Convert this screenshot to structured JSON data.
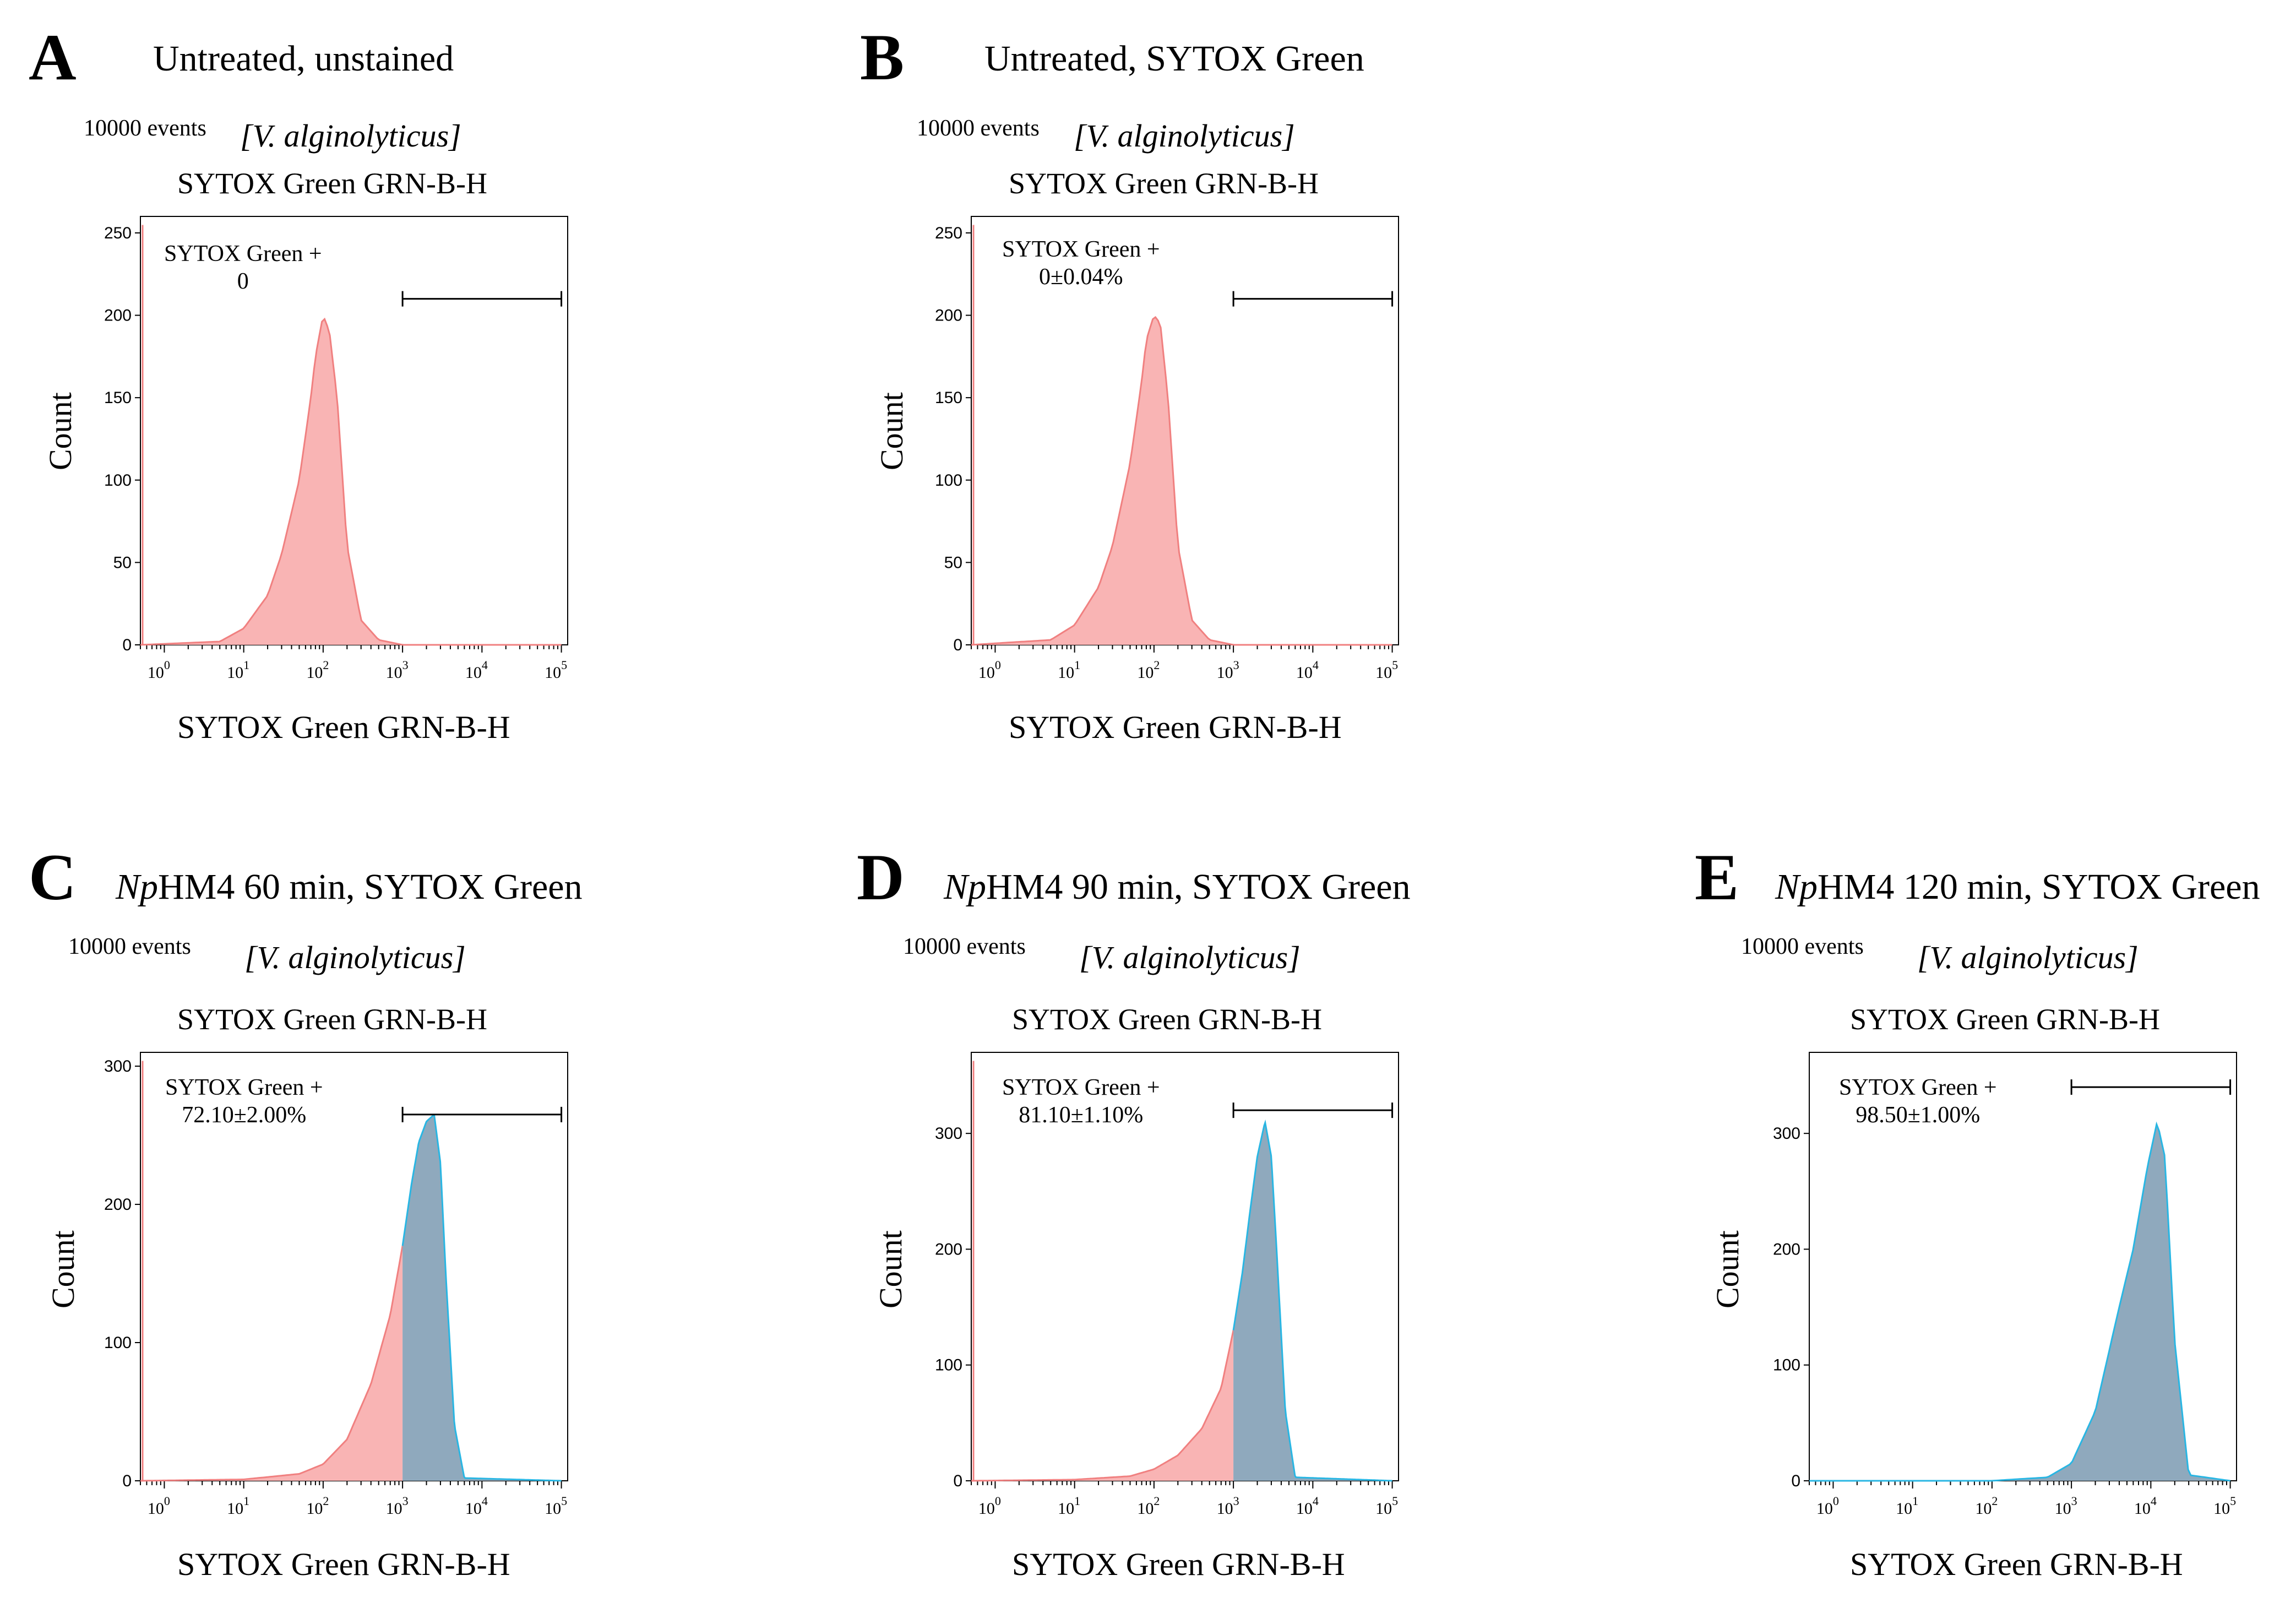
{
  "panels": [
    {
      "id": "A",
      "letter": "A",
      "title": "Untreated, unstained",
      "events": "10000 events",
      "species": "[V. alginolyticus]",
      "axis_title": "SYTOX Green  GRN-B-H",
      "xlabel": "SYTOX Green  GRN-B-H",
      "ylabel": "Count",
      "gate_name": "SYTOX Green +",
      "gate_value": "0"
    },
    {
      "id": "B",
      "letter": "B",
      "title": "Untreated, SYTOX Green",
      "events": "10000 events",
      "species": "[V. alginolyticus]",
      "axis_title": "SYTOX Green  GRN-B-H",
      "xlabel": "SYTOX Green  GRN-B-H",
      "ylabel": "Count",
      "gate_name": "SYTOX Green +",
      "gate_value": "0±0.04%"
    },
    {
      "id": "C",
      "letter": "C",
      "title_italic": "Np",
      "title_rest": "HM4 60 min, SYTOX Green",
      "events": "10000 events",
      "species": "[V. alginolyticus]",
      "axis_title": "SYTOX Green  GRN-B-H",
      "xlabel": "SYTOX Green  GRN-B-H",
      "ylabel": "Count",
      "gate_name": "SYTOX Green +",
      "gate_value": "72.10±2.00%"
    },
    {
      "id": "D",
      "letter": "D",
      "title_italic": "Np",
      "title_rest": "HM4 90 min, SYTOX Green",
      "events": "10000 events",
      "species": "[V. alginolyticus]",
      "axis_title": "SYTOX Green  GRN-B-H",
      "xlabel": "SYTOX Green  GRN-B-H",
      "ylabel": "Count",
      "gate_name": "SYTOX Green +",
      "gate_value": "81.10±1.10%"
    },
    {
      "id": "E",
      "letter": "E",
      "title_italic": "Np",
      "title_rest": "HM4 120 min, SYTOX Green",
      "events": "10000 events",
      "species": "[V. alginolyticus]",
      "axis_title": "SYTOX Green  GRN-B-H",
      "xlabel": "SYTOX Green  GRN-B-H",
      "ylabel": "Count",
      "gate_name": "SYTOX Green +",
      "gate_value": "98.50±1.00%"
    }
  ],
  "colors": {
    "unstained": "#f08080",
    "unstained_fill": "#f9b4b4",
    "stained_line": "#29b6e3",
    "stained_fill": "#8fa9bd",
    "gate": "#000000"
  },
  "chart_data": [
    {
      "panel": "A",
      "type": "area",
      "xscale": "log",
      "xlim": [
        0.5,
        120000
      ],
      "ylim": [
        0,
        260
      ],
      "yticks": [
        0,
        50,
        100,
        150,
        200,
        250
      ],
      "xticks": [
        1,
        10,
        100,
        1000,
        10000,
        100000
      ],
      "gate": [
        1000,
        100000
      ],
      "gate_count": 210,
      "series": [
        {
          "name": "unstained",
          "x": [
            0.5,
            5,
            10,
            20,
            30,
            50,
            70,
            80,
            100,
            120,
            150,
            200,
            300,
            500,
            1000,
            100000
          ],
          "y": [
            0,
            2,
            10,
            30,
            55,
            100,
            150,
            175,
            200,
            190,
            150,
            60,
            15,
            3,
            0,
            0
          ]
        }
      ]
    },
    {
      "panel": "B",
      "type": "area",
      "xscale": "log",
      "xlim": [
        0.5,
        120000
      ],
      "ylim": [
        0,
        260
      ],
      "yticks": [
        0,
        50,
        100,
        150,
        200,
        250
      ],
      "xticks": [
        1,
        10,
        100,
        1000,
        10000,
        100000
      ],
      "gate": [
        1000,
        100000
      ],
      "gate_count": 210,
      "series": [
        {
          "name": "stained",
          "x": [
            0.5,
            5,
            10,
            20,
            30,
            50,
            70,
            80,
            100,
            120,
            150,
            200,
            300,
            500,
            1000,
            100000
          ],
          "y": [
            0,
            3,
            12,
            35,
            60,
            110,
            160,
            185,
            200,
            195,
            150,
            60,
            15,
            3,
            0,
            0
          ]
        }
      ]
    },
    {
      "panel": "C",
      "type": "area",
      "xscale": "log",
      "xlim": [
        0.5,
        120000
      ],
      "ylim": [
        0,
        310
      ],
      "yticks": [
        0,
        100,
        200,
        300
      ],
      "xticks": [
        1,
        10,
        100,
        1000,
        10000,
        100000
      ],
      "gate": [
        1000,
        100000
      ],
      "gate_count": 265,
      "series": [
        {
          "name": "unstained",
          "x": [
            0.5,
            10,
            50,
            100,
            200,
            400,
            700,
            1000
          ],
          "y": [
            0,
            1,
            5,
            12,
            30,
            70,
            120,
            170
          ]
        },
        {
          "name": "stained",
          "x": [
            1000,
            1300,
            1600,
            2000,
            2500,
            3000,
            3500,
            4500,
            6000,
            100000
          ],
          "y": [
            170,
            215,
            245,
            260,
            265,
            230,
            150,
            40,
            2,
            0
          ]
        }
      ]
    },
    {
      "panel": "D",
      "type": "area",
      "xscale": "log",
      "xlim": [
        0.5,
        120000
      ],
      "ylim": [
        0,
        370
      ],
      "yticks": [
        0,
        100,
        200,
        300
      ],
      "xticks": [
        1,
        10,
        100,
        1000,
        10000,
        100000
      ],
      "gate": [
        1000,
        100000
      ],
      "gate_count": 320,
      "series": [
        {
          "name": "unstained",
          "x": [
            0.5,
            10,
            50,
            100,
            200,
            400,
            700,
            1000
          ],
          "y": [
            0,
            1,
            4,
            10,
            22,
            45,
            80,
            130
          ]
        },
        {
          "name": "stained",
          "x": [
            1000,
            1300,
            1600,
            2000,
            2500,
            3000,
            3500,
            4500,
            6000,
            100000
          ],
          "y": [
            130,
            180,
            230,
            280,
            310,
            280,
            200,
            60,
            3,
            0
          ]
        }
      ]
    },
    {
      "panel": "E",
      "type": "area",
      "xscale": "log",
      "xlim": [
        0.5,
        120000
      ],
      "ylim": [
        0,
        370
      ],
      "yticks": [
        0,
        100,
        200,
        300
      ],
      "xticks": [
        1,
        10,
        100,
        1000,
        10000,
        100000
      ],
      "gate": [
        1000,
        100000
      ],
      "gate_count": 340,
      "series": [
        {
          "name": "stained",
          "x": [
            0.5,
            100,
            500,
            1000,
            2000,
            4000,
            6000,
            9000,
            12000,
            15000,
            20000,
            30000,
            100000
          ],
          "y": [
            0,
            0,
            3,
            15,
            60,
            150,
            200,
            270,
            310,
            280,
            120,
            5,
            0
          ]
        }
      ]
    }
  ]
}
